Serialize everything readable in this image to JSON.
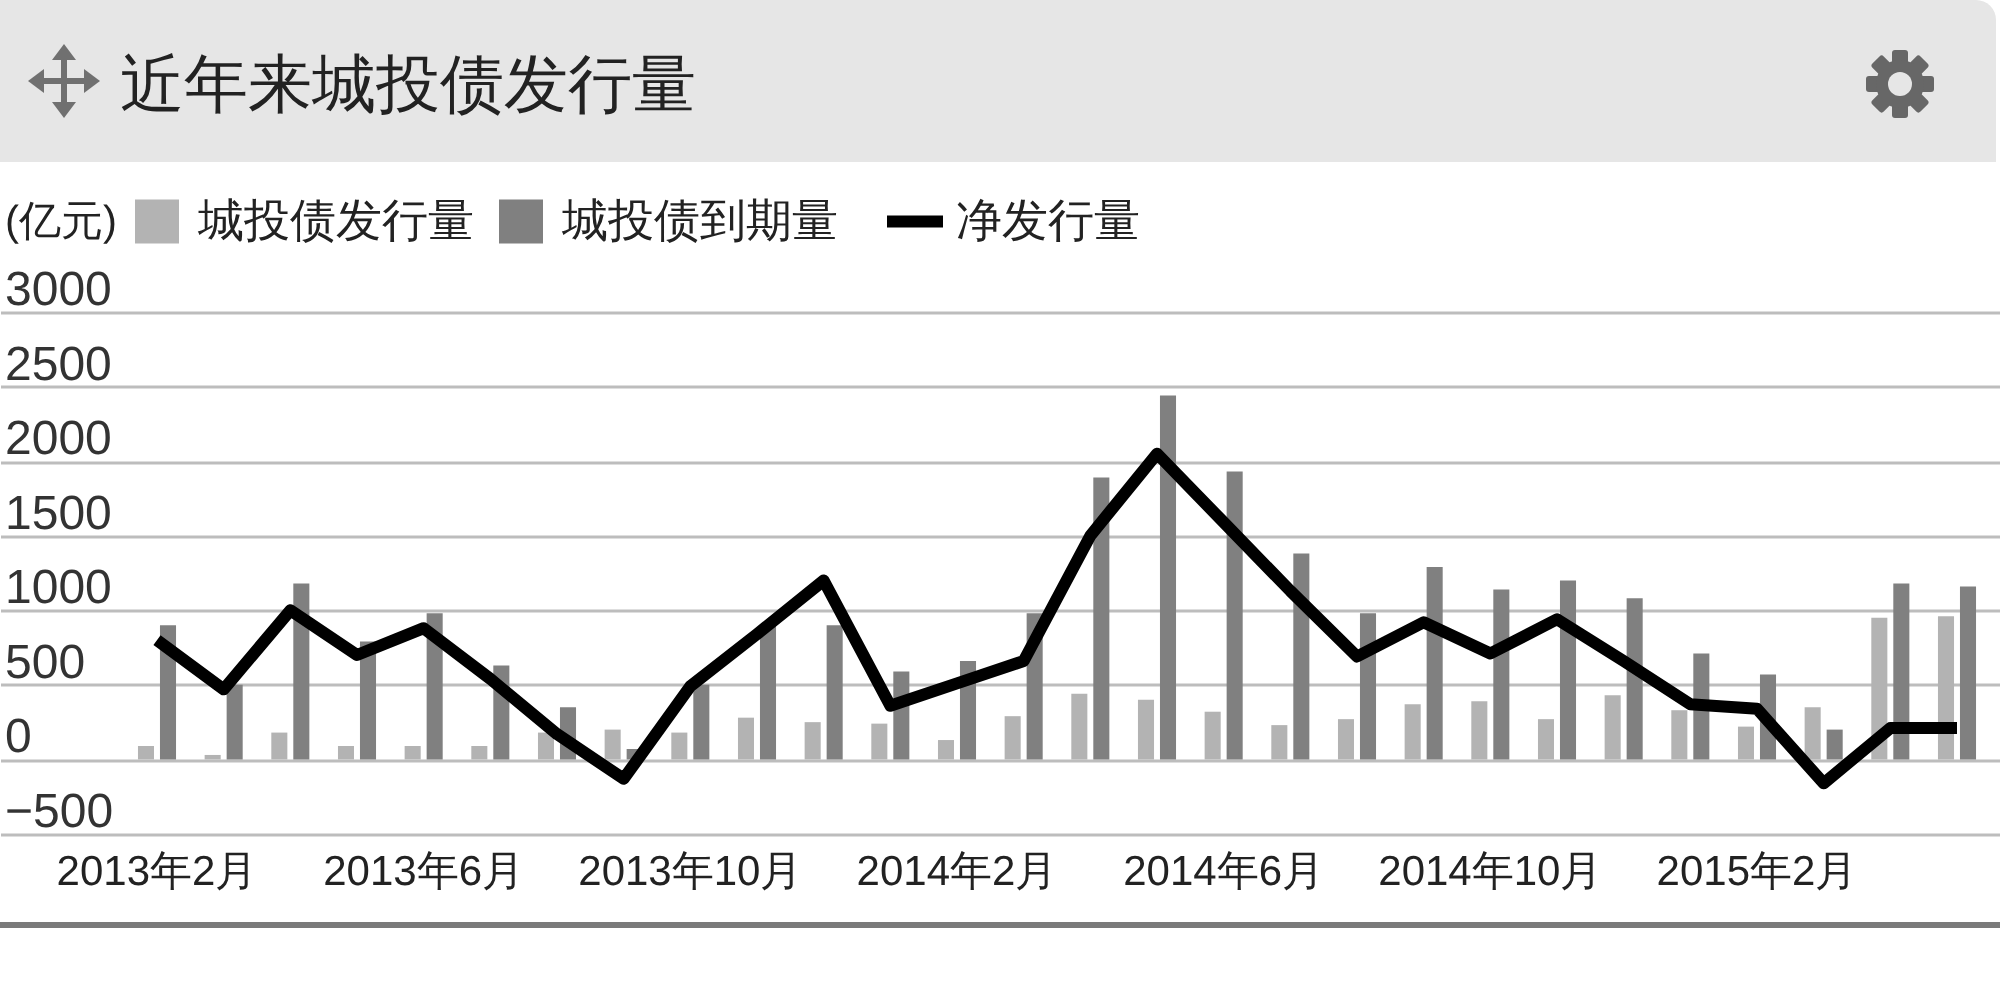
{
  "chart_data": {
    "type": "bar",
    "title": "近年来城投债发行量",
    "ylabel": "(亿元)",
    "categories": [
      "2013年2月",
      null,
      null,
      null,
      "2013年6月",
      null,
      null,
      null,
      "2013年10月",
      null,
      null,
      null,
      "2014年2月",
      null,
      null,
      null,
      "2014年6月",
      null,
      null,
      null,
      "2014年10月",
      null,
      null,
      null,
      "2015年2月",
      null,
      null,
      null
    ],
    "series": [
      {
        "name": "城投债发行量",
        "color": "#b3b3b3",
        "values": [
          90,
          30,
          180,
          90,
          90,
          90,
          180,
          200,
          180,
          280,
          250,
          240,
          130,
          290,
          440,
          400,
          320,
          230,
          270,
          370,
          390,
          270,
          430,
          330,
          220,
          350,
          950,
          960
        ]
      },
      {
        "name": "城投债到期量",
        "color": "#808080",
        "values": [
          900,
          500,
          1180,
          790,
          980,
          630,
          350,
          70,
          500,
          900,
          900,
          590,
          660,
          980,
          1890,
          2440,
          1930,
          1380,
          980,
          1290,
          1140,
          1200,
          1080,
          710,
          570,
          200,
          1180,
          1160
        ]
      },
      {
        "name": "净发行量",
        "type": "line",
        "color": "#000000",
        "values": [
          800,
          470,
          1000,
          700,
          880,
          540,
          170,
          -130,
          490,
          840,
          1200,
          360,
          510,
          660,
          1500,
          2050,
          1590,
          1130,
          690,
          920,
          710,
          940,
          660,
          370,
          340,
          -160,
          210,
          210
        ]
      }
    ],
    "ylim": [
      -500,
      3000
    ],
    "yticks": [
      -500,
      0,
      500,
      1000,
      1500,
      2000,
      2500,
      3000
    ],
    "grid": "y",
    "legend": "top left"
  }
}
